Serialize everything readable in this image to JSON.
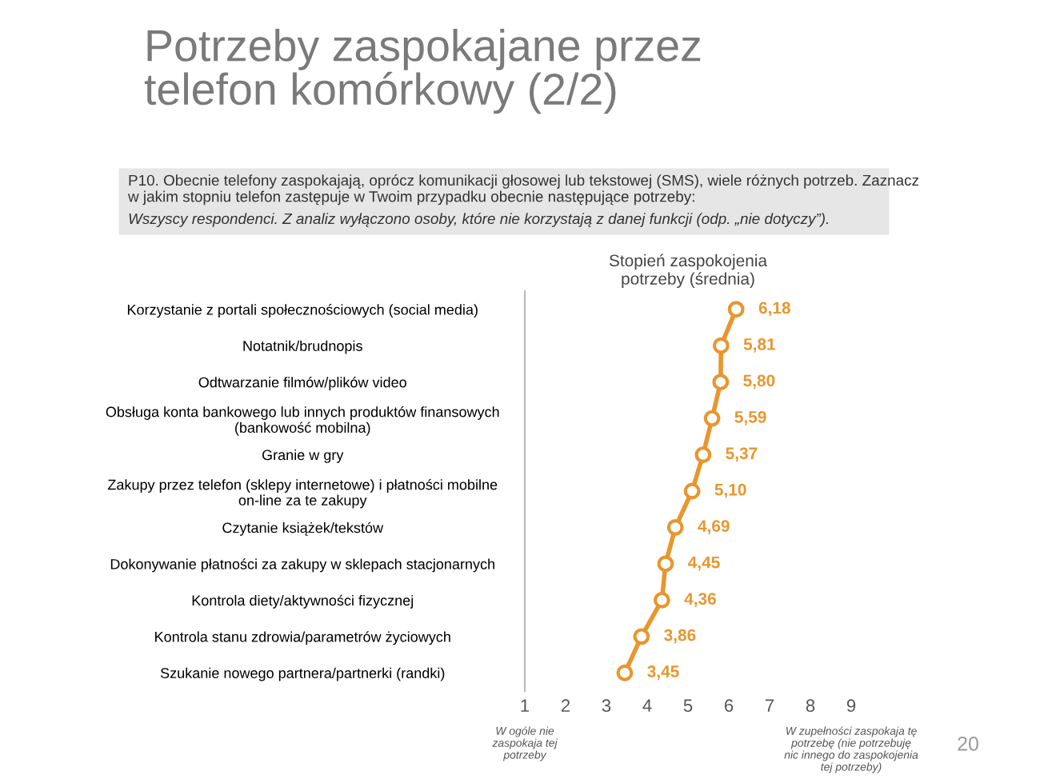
{
  "chart_data": {
    "type": "line",
    "orientation": "horizontal",
    "title": "Potrzeby zaspokajane przez\ntelefon komórkowy (2/2)",
    "subtitle": "P10. Obecnie telefony zaspokajają, oprócz komunikacji głosowej lub tekstowej (SMS), wiele różnych potrzeb. Zaznacz\nw jakim stopniu telefon zastępuje w Twoim przypadku obecnie następujące potrzeby:",
    "xlabel": "Stopień zaspokojenia\npotrzeby (średnia)",
    "annotations": [
      "Wszyscy respondenci. Z analiz wyłączono osoby, które nie korzystają z danej funkcji (odp. „nie dotyczy”).",
      "W ogóle nie\nzaspokaja tej\npotrzeby",
      "W zupełności zaspokaja tę\npotrzebę (nie potrzebuję\nnic innego do zaspokojenia\ntej potrzeby)",
      "20"
    ],
    "categories": [
      "Korzystanie z portali społecznościowych (social media)",
      "Notatnik/brudnopis",
      "Odtwarzanie filmów/plików video",
      "Obsługa konta bankowego lub innych produktów finansowych\n(bankowość mobilna)",
      "Granie w gry",
      "Zakupy przez telefon (sklepy internetowe) i płatności mobilne\non-line za te zakupy",
      "Czytanie książek/tekstów",
      "Dokonywanie płatności za zakupy w sklepach stacjonarnych",
      "Kontrola diety/aktywności fizycznej",
      "Kontrola stanu zdrowia/parametrów życiowych",
      "Szukanie nowego partnera/partnerki (randki)"
    ],
    "series": [
      {
        "color": "#e8962e",
        "values": [
          6.18,
          5.81,
          5.8,
          5.59,
          5.37,
          5.1,
          4.69,
          4.45,
          4.36,
          3.86,
          3.45
        ],
        "value_labels": [
          "6,18",
          "5,81",
          "5,80",
          "5,59",
          "5,37",
          "5,10",
          "4,69",
          "4,45",
          "4,36",
          "3,86",
          "3,45"
        ]
      }
    ],
    "xlim": [
      1,
      9
    ],
    "xticks": [
      1,
      2,
      3,
      4,
      5,
      6,
      7,
      8,
      9
    ],
    "marker": "circle",
    "line_style": "solid",
    "grid": false,
    "legend": false
  }
}
